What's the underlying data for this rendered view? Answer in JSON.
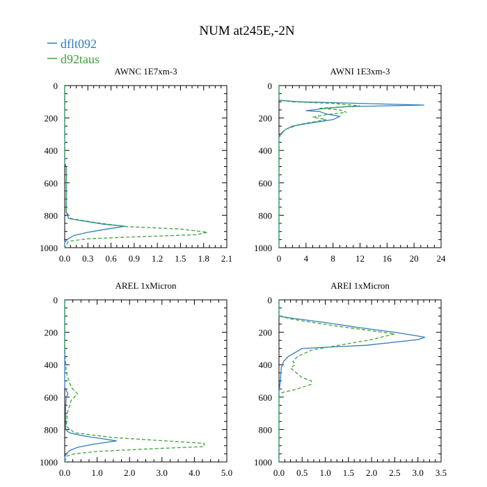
{
  "title": "NUM at245E,-2N",
  "legend": [
    {
      "label": "dflt092",
      "color": "#2f7dbb",
      "dash": "solid"
    },
    {
      "label": "d92taus",
      "color": "#3aa335",
      "dash": "dashed"
    }
  ],
  "chart_data": [
    {
      "type": "line",
      "title": "AWNC  1E7xm-3",
      "xlim": [
        0,
        2.1
      ],
      "xticks": [
        "0.0",
        "0.3",
        "0.6",
        "0.9",
        "1.2",
        "1.5",
        "1.8",
        "2.1"
      ],
      "ylim": [
        0,
        1000
      ],
      "yticks": [
        "0",
        "200",
        "400",
        "600",
        "800",
        "1000"
      ],
      "y_inverted": true,
      "series": [
        {
          "name": "dflt092",
          "points": [
            [
              0,
              0
            ],
            [
              0,
              480
            ],
            [
              0.02,
              500
            ],
            [
              0.02,
              780
            ],
            [
              0.05,
              820
            ],
            [
              0.3,
              840
            ],
            [
              0.5,
              855
            ],
            [
              0.78,
              868
            ],
            [
              0.55,
              885
            ],
            [
              0.3,
              905
            ],
            [
              0.12,
              925
            ],
            [
              0.05,
              945
            ],
            [
              0,
              965
            ],
            [
              0,
              1000
            ]
          ]
        },
        {
          "name": "d92taus",
          "points": [
            [
              0,
              0
            ],
            [
              0,
              480
            ],
            [
              0.02,
              500
            ],
            [
              0.02,
              780
            ],
            [
              0.08,
              820
            ],
            [
              0.4,
              845
            ],
            [
              0.8,
              870
            ],
            [
              1.5,
              885
            ],
            [
              1.85,
              905
            ],
            [
              1.7,
              920
            ],
            [
              0.8,
              935
            ],
            [
              0.3,
              945
            ],
            [
              0.05,
              960
            ],
            [
              0,
              1000
            ]
          ]
        }
      ]
    },
    {
      "type": "line",
      "title": "AWNI  1E3xm-3",
      "xlim": [
        0,
        24
      ],
      "xticks": [
        "0",
        "4",
        "8",
        "12",
        "16",
        "20",
        "24"
      ],
      "ylim": [
        0,
        1000
      ],
      "yticks": [
        "0",
        "200",
        "400",
        "600",
        "800",
        "1000"
      ],
      "y_inverted": true,
      "series": [
        {
          "name": "dflt092",
          "points": [
            [
              0,
              0
            ],
            [
              0,
              90
            ],
            [
              3,
              100
            ],
            [
              12,
              110
            ],
            [
              21.5,
              120
            ],
            [
              10,
              130
            ],
            [
              7,
              140
            ],
            [
              4,
              155
            ],
            [
              6,
              160
            ],
            [
              7,
              175
            ],
            [
              9,
              190
            ],
            [
              8,
              210
            ],
            [
              4,
              235
            ],
            [
              2,
              250
            ],
            [
              1,
              270
            ],
            [
              0.3,
              295
            ],
            [
              0,
              310
            ],
            [
              0,
              1000
            ]
          ]
        },
        {
          "name": "d92taus",
          "points": [
            [
              0,
              0
            ],
            [
              0,
              90
            ],
            [
              2,
              100
            ],
            [
              8,
              110
            ],
            [
              12,
              125
            ],
            [
              6,
              140
            ],
            [
              9,
              150
            ],
            [
              10,
              165
            ],
            [
              7,
              180
            ],
            [
              5,
              195
            ],
            [
              7,
              210
            ],
            [
              3,
              240
            ],
            [
              1,
              270
            ],
            [
              0.5,
              290
            ],
            [
              0,
              320
            ],
            [
              0,
              1000
            ]
          ]
        }
      ]
    },
    {
      "type": "line",
      "title": "AREL  1xMicron",
      "xlim": [
        0,
        5.0
      ],
      "xticks": [
        "0.0",
        "1.0",
        "2.0",
        "3.0",
        "4.0",
        "5.0"
      ],
      "ylim": [
        0,
        1000
      ],
      "yticks": [
        "0",
        "200",
        "400",
        "600",
        "800",
        "1000"
      ],
      "y_inverted": true,
      "series": [
        {
          "name": "dflt092",
          "points": [
            [
              0,
              0
            ],
            [
              0,
              540
            ],
            [
              0.05,
              560
            ],
            [
              0.1,
              580
            ],
            [
              0.05,
              600
            ],
            [
              0.03,
              650
            ],
            [
              0.03,
              800
            ],
            [
              0.15,
              820
            ],
            [
              0.6,
              840
            ],
            [
              1.6,
              870
            ],
            [
              0.9,
              890
            ],
            [
              0.4,
              910
            ],
            [
              0.15,
              930
            ],
            [
              0.05,
              950
            ],
            [
              0,
              970
            ],
            [
              0,
              1000
            ]
          ]
        },
        {
          "name": "d92taus",
          "points": [
            [
              0,
              0
            ],
            [
              0,
              300
            ],
            [
              0.05,
              450
            ],
            [
              0.2,
              540
            ],
            [
              0.4,
              580
            ],
            [
              0.2,
              620
            ],
            [
              0.08,
              700
            ],
            [
              0.05,
              780
            ],
            [
              0.3,
              820
            ],
            [
              1.5,
              850
            ],
            [
              4.3,
              885
            ],
            [
              4.3,
              905
            ],
            [
              2.5,
              920
            ],
            [
              1.0,
              935
            ],
            [
              0.3,
              950
            ],
            [
              0.05,
              965
            ],
            [
              0,
              1000
            ]
          ]
        }
      ]
    },
    {
      "type": "line",
      "title": "AREI  1xMicron",
      "xlim": [
        0,
        3.5
      ],
      "xticks": [
        "0.0",
        "0.5",
        "1.0",
        "1.5",
        "2.0",
        "2.5",
        "3.0",
        "3.5"
      ],
      "ylim": [
        0,
        1000
      ],
      "yticks": [
        "0",
        "200",
        "400",
        "600",
        "800",
        "1000"
      ],
      "y_inverted": true,
      "series": [
        {
          "name": "dflt092",
          "points": [
            [
              0,
              0
            ],
            [
              0,
              100
            ],
            [
              0.2,
              110
            ],
            [
              1.0,
              140
            ],
            [
              1.7,
              170
            ],
            [
              2.5,
              200
            ],
            [
              3.15,
              230
            ],
            [
              3.0,
              245
            ],
            [
              1.9,
              280
            ],
            [
              0.5,
              300
            ],
            [
              0.2,
              350
            ],
            [
              0.1,
              380
            ],
            [
              0.05,
              420
            ],
            [
              0.03,
              500
            ],
            [
              0,
              570
            ],
            [
              0,
              1000
            ]
          ]
        },
        {
          "name": "d92taus",
          "points": [
            [
              0,
              0
            ],
            [
              0,
              100
            ],
            [
              0.3,
              120
            ],
            [
              1.2,
              160
            ],
            [
              2.5,
              210
            ],
            [
              2.0,
              245
            ],
            [
              1.3,
              280
            ],
            [
              0.7,
              310
            ],
            [
              0.4,
              350
            ],
            [
              0.3,
              380
            ],
            [
              0.35,
              400
            ],
            [
              0.25,
              420
            ],
            [
              0.5,
              480
            ],
            [
              0.7,
              500
            ],
            [
              0.7,
              520
            ],
            [
              0.4,
              550
            ],
            [
              0.1,
              570
            ],
            [
              0,
              580
            ],
            [
              0,
              1000
            ]
          ]
        }
      ]
    }
  ]
}
